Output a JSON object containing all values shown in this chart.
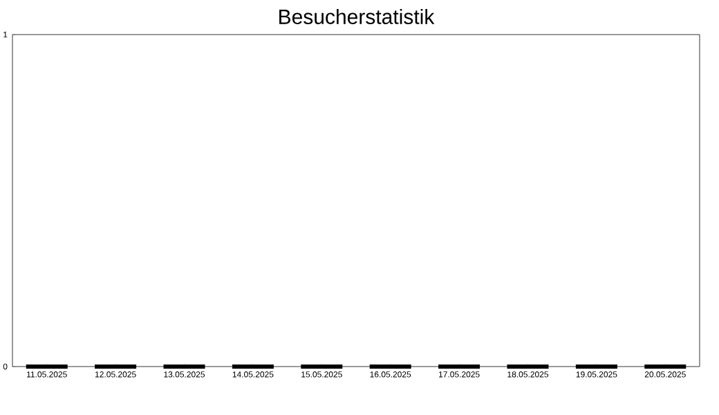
{
  "chart_data": {
    "type": "bar",
    "title": "Besucherstatistik",
    "categories": [
      "11.05.2025",
      "12.05.2025",
      "13.05.2025",
      "14.05.2025",
      "15.05.2025",
      "16.05.2025",
      "17.05.2025",
      "18.05.2025",
      "19.05.2025",
      "20.05.2025"
    ],
    "values": [
      0,
      0,
      0,
      0,
      0,
      0,
      0,
      0,
      0,
      0
    ],
    "color": "#000000",
    "ylim": [
      0,
      1
    ],
    "yticks": [
      0,
      1
    ],
    "grid": false
  }
}
